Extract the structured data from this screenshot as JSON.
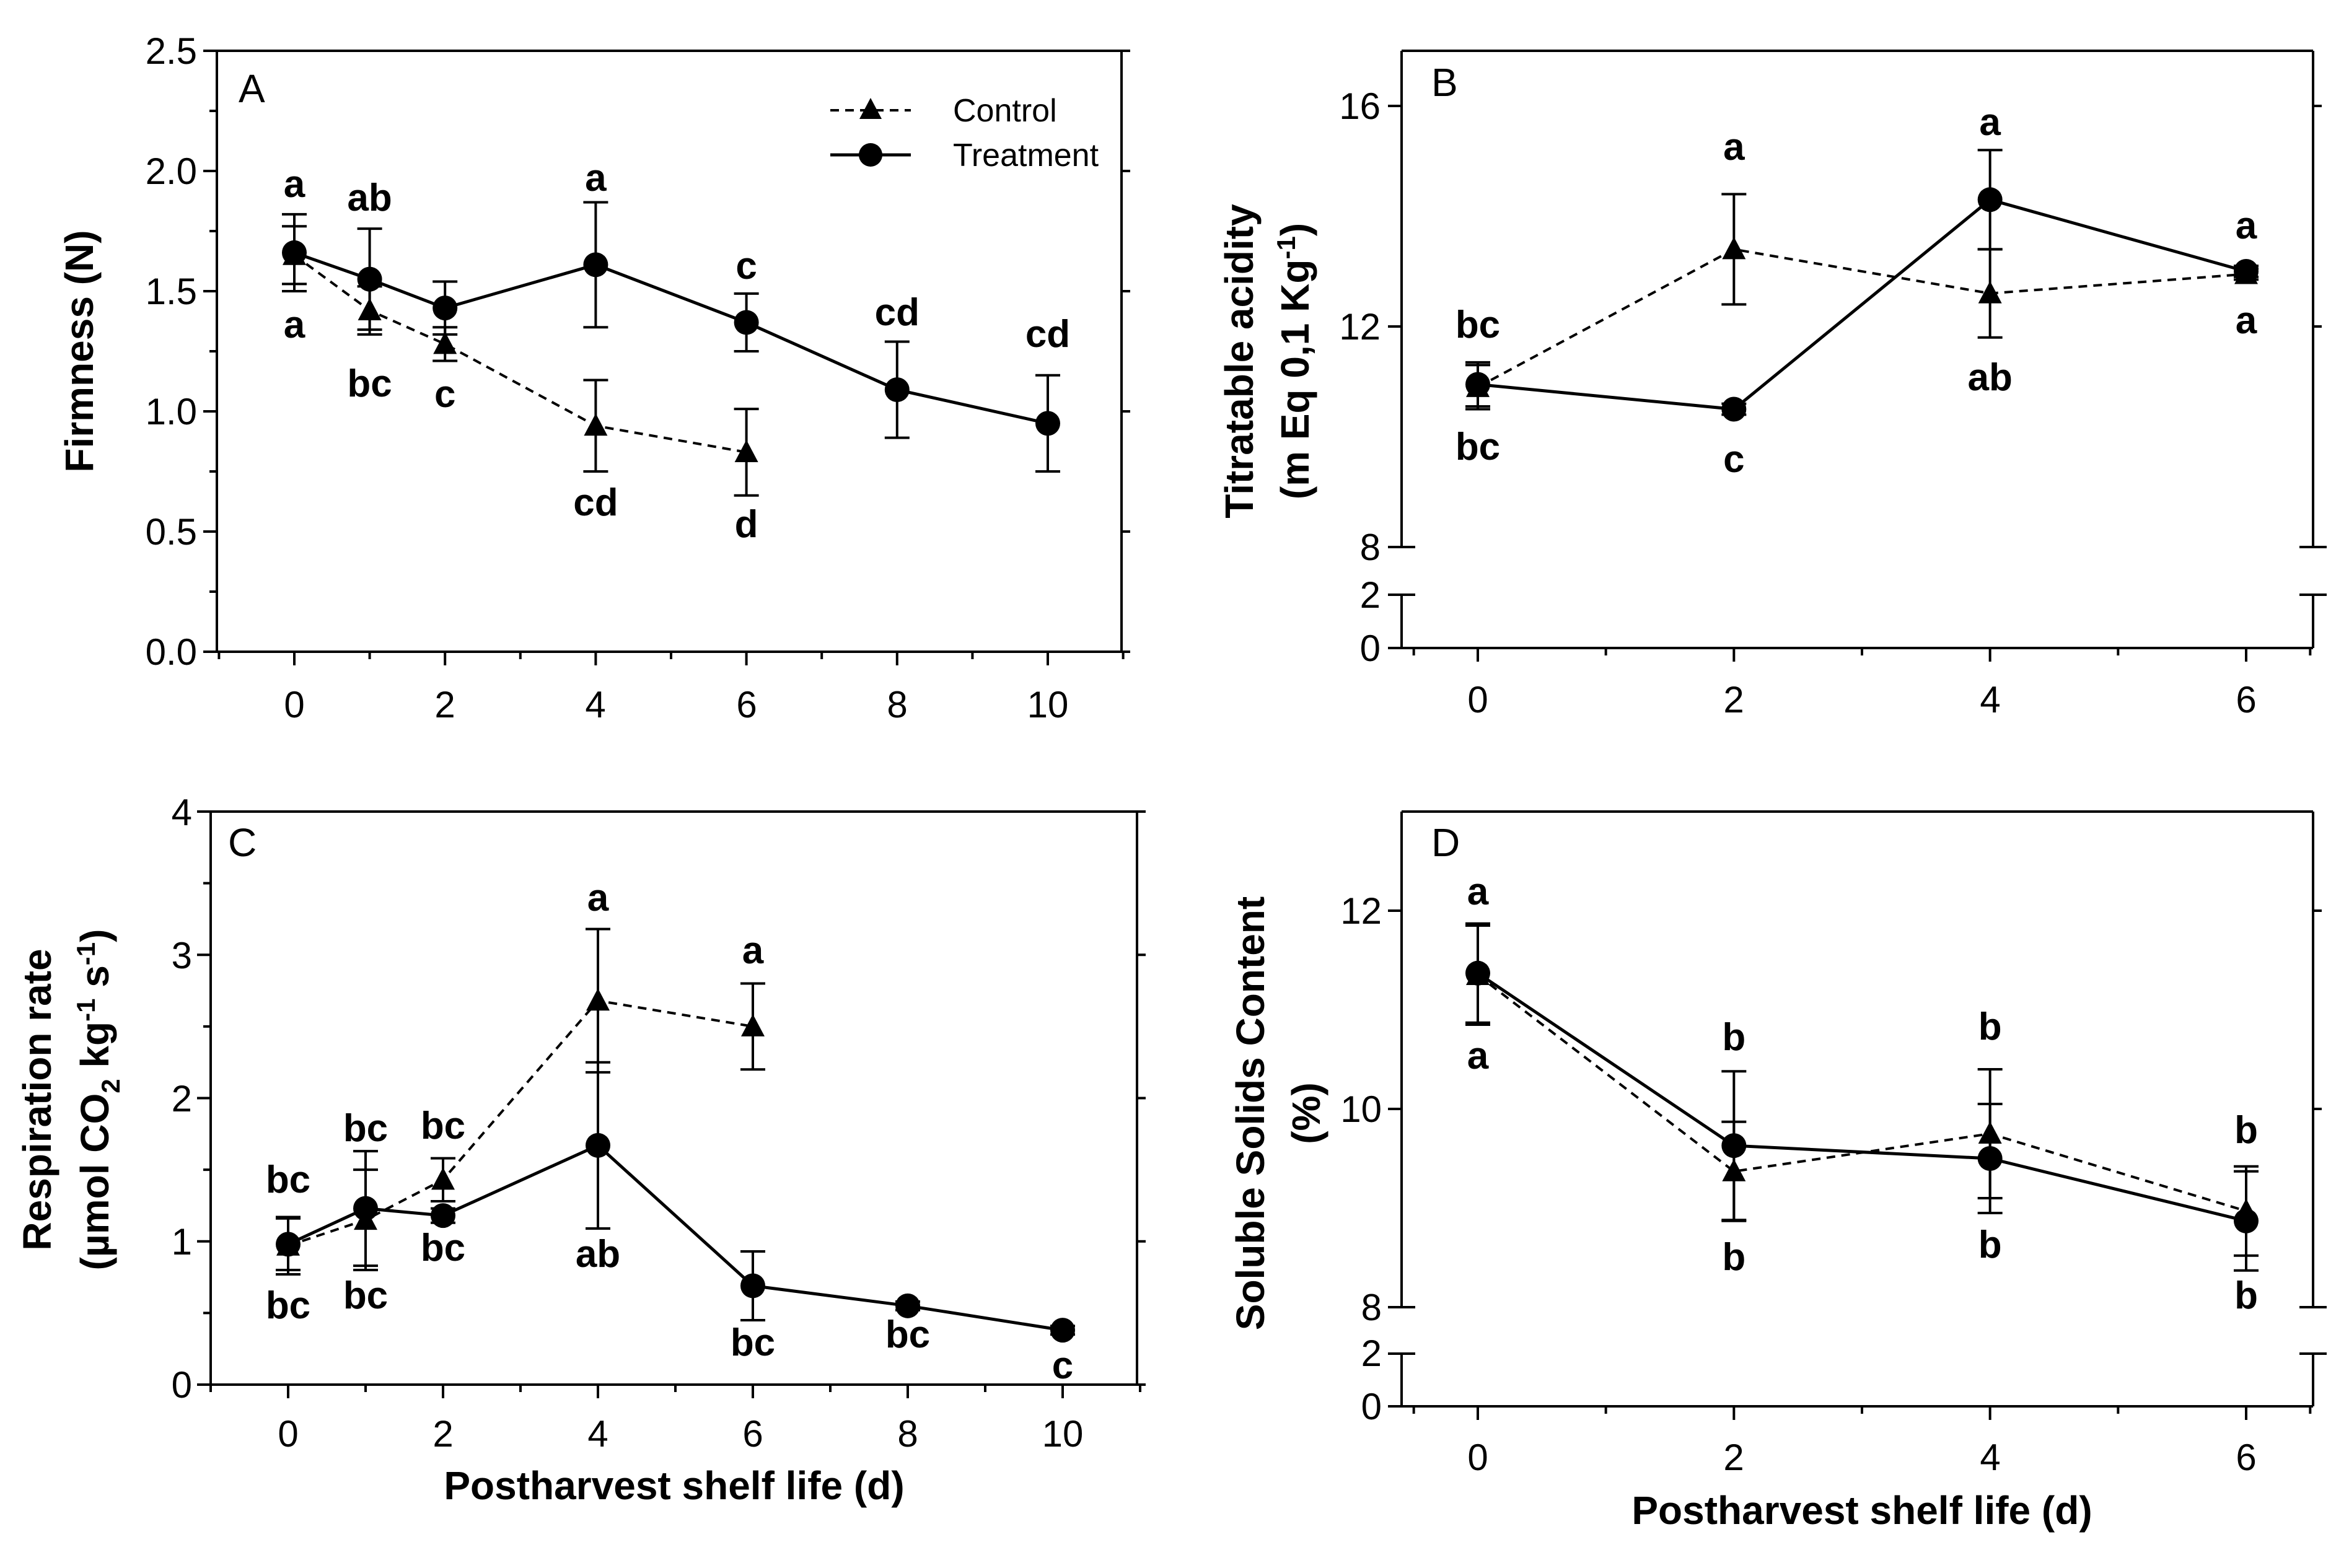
{
  "legend": {
    "control_label": "Control",
    "treatment_label": "Treatment"
  },
  "chart_data": [
    {
      "id": "A",
      "type": "line",
      "panel_label": "A",
      "title": "",
      "xlabel": "",
      "ylabel": "Firmness (N)",
      "xlim": [
        -1,
        11
      ],
      "ylim": [
        0,
        2.5
      ],
      "xticks": [
        "0",
        "2",
        "4",
        "6",
        "8",
        "10"
      ],
      "yticks": [
        "0.0",
        "0.5",
        "1.0",
        "1.5",
        "2.0",
        "2.5"
      ],
      "series": [
        {
          "name": "Control",
          "x": [
            0,
            1,
            2,
            4,
            6
          ],
          "y": [
            1.65,
            1.42,
            1.28,
            0.94,
            0.83
          ],
          "err": [
            0.12,
            0.1,
            0.07,
            0.19,
            0.18
          ],
          "letters": [
            "a",
            "bc",
            "c",
            "cd",
            "d"
          ]
        },
        {
          "name": "Treatment",
          "x": [
            0,
            1,
            2,
            4,
            6,
            8,
            10
          ],
          "y": [
            1.66,
            1.55,
            1.43,
            1.61,
            1.37,
            1.09,
            0.95
          ],
          "err": [
            0.16,
            0.21,
            0.11,
            0.26,
            0.12,
            0.2,
            0.2
          ],
          "letters": [
            "a",
            "ab",
            "",
            "a",
            "c",
            "cd",
            "cd"
          ]
        }
      ]
    },
    {
      "id": "B",
      "type": "line",
      "panel_label": "B",
      "title": "",
      "xlabel": "",
      "ylabel": "Titratable acidity",
      "ylabel2": "(m Eq  0,1 Kg-1)",
      "ylabel2_main": "(m Eq  0,1 Kg",
      "ylabel2_sup": "-1",
      "ylabel2_end": ")",
      "xlim": [
        -0.5,
        6.5
      ],
      "ylim": [
        8,
        17
      ],
      "ylim_lower": [
        0,
        2
      ],
      "xticks": [
        "0",
        "2",
        "4",
        "6"
      ],
      "yticks": [
        "8",
        "12",
        "16"
      ],
      "yticks_lower": [
        "0",
        "2"
      ],
      "series": [
        {
          "name": "Control",
          "x": [
            0,
            2,
            4,
            6
          ],
          "y": [
            10.9,
            13.4,
            12.6,
            12.95
          ],
          "err": [
            0.4,
            1.0,
            0.8,
            0.1
          ],
          "letters": [
            "bc",
            "a",
            "ab",
            "a"
          ]
        },
        {
          "name": "Treatment",
          "x": [
            0,
            2,
            4,
            6
          ],
          "y": [
            10.95,
            10.5,
            14.3,
            13.0
          ],
          "err": [
            0.4,
            0.1,
            0.9,
            0.1
          ],
          "letters": [
            "bc",
            "c",
            "a",
            "a"
          ]
        }
      ]
    },
    {
      "id": "C",
      "type": "line",
      "panel_label": "C",
      "title": "",
      "xlabel": "Postharvest shelf life (d)",
      "ylabel": "Respiration rate",
      "ylabel2": "(µmol CO2 kg-1 s-1)",
      "ylabel2_p1": "(µmol CO",
      "ylabel2_sub": "2",
      "ylabel2_p2": " kg",
      "ylabel2_sup1": "-1",
      "ylabel2_p3": " s",
      "ylabel2_sup2": "-1",
      "ylabel2_end": ")",
      "xlim": [
        -1,
        11
      ],
      "ylim": [
        0,
        4
      ],
      "xticks": [
        "0",
        "2",
        "4",
        "6",
        "8",
        "10"
      ],
      "yticks": [
        "0",
        "1",
        "2",
        "3",
        "4"
      ],
      "series": [
        {
          "name": "Control",
          "x": [
            0,
            1,
            2,
            4,
            6
          ],
          "y": [
            0.97,
            1.15,
            1.43,
            2.68,
            2.5
          ],
          "err": [
            0.2,
            0.35,
            0.15,
            0.5,
            0.3
          ],
          "letters": [
            "bc",
            "bc",
            "bc",
            "a",
            "a"
          ]
        },
        {
          "name": "Treatment",
          "x": [
            0,
            1,
            2,
            4,
            6,
            8,
            10
          ],
          "y": [
            0.98,
            1.23,
            1.18,
            1.67,
            0.69,
            0.55,
            0.38
          ],
          "err": [
            0.18,
            0.4,
            0.05,
            0.58,
            0.24,
            0.03,
            0.03
          ],
          "letters": [
            "bc",
            "bc",
            "bc",
            "ab",
            "bc",
            "bc",
            "c"
          ]
        }
      ]
    },
    {
      "id": "D",
      "type": "line",
      "panel_label": "D",
      "title": "",
      "xlabel": "Postharvest shelf life (d)",
      "ylabel": "Soluble Solids Content",
      "ylabel2": "(%)",
      "xlim": [
        -0.5,
        6.5
      ],
      "ylim": [
        8,
        13
      ],
      "ylim_lower": [
        0,
        2
      ],
      "xticks": [
        "0",
        "2",
        "4",
        "6"
      ],
      "yticks": [
        "8",
        "10",
        "12"
      ],
      "yticks_lower": [
        "0",
        "2"
      ],
      "series": [
        {
          "name": "Control",
          "x": [
            0,
            2,
            4,
            6
          ],
          "y": [
            11.35,
            9.37,
            9.75,
            8.97
          ],
          "err": [
            0.5,
            0.5,
            0.65,
            0.45
          ],
          "letters": [
            "a",
            "b",
            "b",
            "b"
          ]
        },
        {
          "name": "Treatment",
          "x": [
            0,
            2,
            4,
            6
          ],
          "y": [
            11.37,
            9.63,
            9.5,
            8.87
          ],
          "err": [
            0.5,
            0.75,
            0.55,
            0.5
          ],
          "letters": [
            "a",
            "b",
            "b",
            "b"
          ]
        }
      ]
    }
  ]
}
